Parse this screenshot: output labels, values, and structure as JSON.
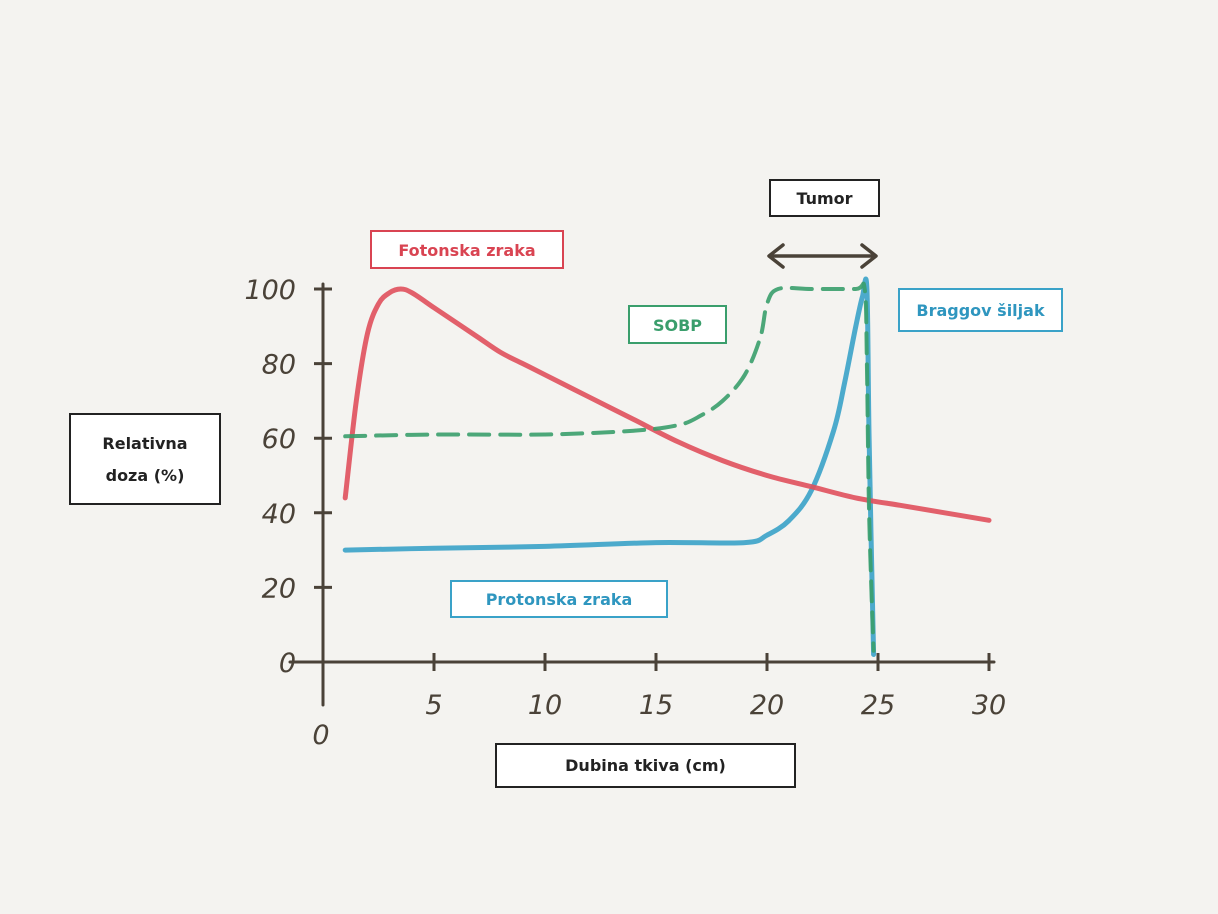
{
  "chart_data": {
    "type": "line",
    "xlabel": "Dubina tkiva (cm)",
    "ylabel": "Relativna doza (%)",
    "xlim": [
      0,
      30
    ],
    "ylim": [
      0,
      100
    ],
    "x_ticks": [
      "0",
      "5",
      "10",
      "15",
      "20",
      "25",
      "30"
    ],
    "y_ticks": [
      "0",
      "20",
      "40",
      "60",
      "80",
      "100"
    ],
    "grid": false,
    "series": [
      {
        "name": "Fotonska zraka",
        "color": "#e0505c",
        "style": "solid",
        "x": [
          1,
          1.5,
          2,
          2.5,
          3,
          3.5,
          4,
          5,
          6,
          7,
          8,
          9,
          10,
          12,
          14,
          16,
          18,
          20,
          22,
          24,
          26,
          28,
          30
        ],
        "y": [
          44,
          70,
          88,
          96,
          99,
          100,
          99,
          95,
          91,
          87,
          83,
          80,
          77,
          71,
          65,
          59,
          54,
          50,
          47,
          44,
          42,
          40,
          38
        ]
      },
      {
        "name": "Protonska zraka",
        "color": "#3aa2c8",
        "style": "solid",
        "x": [
          1,
          5,
          10,
          15,
          19,
          20,
          21,
          22,
          23,
          23.5,
          24,
          24.3,
          24.5,
          24.6,
          24.8
        ],
        "y": [
          30,
          30.5,
          31,
          32,
          32,
          34,
          38,
          46,
          62,
          75,
          90,
          98,
          100,
          60,
          2
        ]
      },
      {
        "name": "SOBP",
        "color": "#3a9e6c",
        "style": "dashed",
        "x": [
          1,
          5,
          10,
          14,
          16,
          17,
          18,
          19,
          19.7,
          20,
          20.5,
          22,
          24,
          24.4,
          24.5,
          24.6,
          24.8
        ],
        "y": [
          60.5,
          61,
          61,
          62,
          63.5,
          66,
          70,
          77,
          87,
          96,
          100,
          100,
          100,
          100,
          80,
          40,
          3
        ]
      }
    ],
    "annotations": {
      "tumor": "Tumor",
      "bragg_peak": "Braggov šiljak",
      "tumor_range": [
        20,
        25
      ]
    }
  }
}
